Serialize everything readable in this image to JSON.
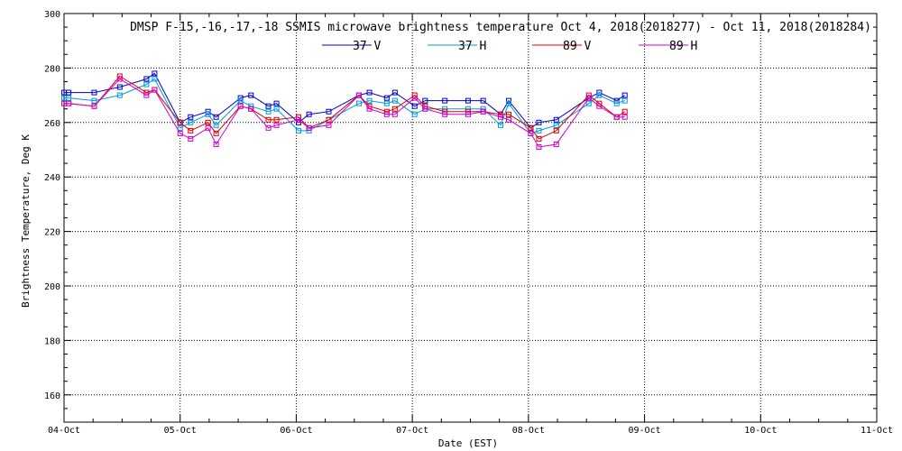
{
  "chart_data": {
    "type": "line",
    "title": "DMSP F-15,-16,-17,-18 SSMIS microwave brightness temperature Oct  4, 2018(2018277) - Oct 11, 2018(2018284)",
    "xlabel": "Date (EST)",
    "ylabel": "Brightness Temperature, Deg K",
    "xlim": [
      0,
      7
    ],
    "ylim": [
      150,
      300
    ],
    "x_ticks": [
      {
        "value": 0,
        "label": "04-Oct"
      },
      {
        "value": 1,
        "label": "05-Oct"
      },
      {
        "value": 2,
        "label": "06-Oct"
      },
      {
        "value": 3,
        "label": "07-Oct"
      },
      {
        "value": 4,
        "label": "08-Oct"
      },
      {
        "value": 5,
        "label": "09-Oct"
      },
      {
        "value": 6,
        "label": "10-Oct"
      },
      {
        "value": 7,
        "label": "11-Oct"
      }
    ],
    "y_ticks": [
      160,
      180,
      200,
      220,
      240,
      260,
      280,
      300
    ],
    "grid": true,
    "legend_position": "top",
    "series": [
      {
        "name": "37 V",
        "color": "#0000cc",
        "points": [
          [
            0.0,
            271
          ],
          [
            0.04,
            271
          ],
          [
            0.26,
            271
          ],
          [
            0.48,
            273
          ],
          [
            0.71,
            276
          ],
          [
            0.78,
            278
          ],
          [
            1.0,
            260
          ],
          [
            1.09,
            262
          ],
          [
            1.24,
            264
          ],
          [
            1.31,
            262
          ],
          [
            1.52,
            269
          ],
          [
            1.61,
            270
          ],
          [
            1.76,
            266
          ],
          [
            1.83,
            267
          ],
          [
            2.02,
            260
          ],
          [
            2.11,
            263
          ],
          [
            2.28,
            264
          ],
          [
            2.54,
            270
          ],
          [
            2.63,
            271
          ],
          [
            2.78,
            269
          ],
          [
            2.85,
            271
          ],
          [
            3.02,
            266
          ],
          [
            3.11,
            268
          ],
          [
            3.28,
            268
          ],
          [
            3.48,
            268
          ],
          [
            3.61,
            268
          ],
          [
            3.76,
            263
          ],
          [
            3.83,
            268
          ],
          [
            4.02,
            258
          ],
          [
            4.09,
            260
          ],
          [
            4.24,
            261
          ],
          [
            4.52,
            269
          ],
          [
            4.61,
            271
          ],
          [
            4.76,
            268
          ],
          [
            4.83,
            270
          ]
        ]
      },
      {
        "name": "37 H",
        "color": "#0099dd",
        "points": [
          [
            0.0,
            269
          ],
          [
            0.04,
            269
          ],
          [
            0.26,
            268
          ],
          [
            0.48,
            270
          ],
          [
            0.71,
            274
          ],
          [
            0.78,
            276
          ],
          [
            1.0,
            258
          ],
          [
            1.09,
            260
          ],
          [
            1.24,
            263
          ],
          [
            1.31,
            259
          ],
          [
            1.52,
            268
          ],
          [
            1.61,
            266
          ],
          [
            1.76,
            264
          ],
          [
            1.83,
            265
          ],
          [
            2.02,
            257
          ],
          [
            2.11,
            257
          ],
          [
            2.28,
            261
          ],
          [
            2.54,
            267
          ],
          [
            2.63,
            268
          ],
          [
            2.78,
            267
          ],
          [
            2.85,
            268
          ],
          [
            3.02,
            263
          ],
          [
            3.11,
            265
          ],
          [
            3.28,
            265
          ],
          [
            3.48,
            265
          ],
          [
            3.61,
            265
          ],
          [
            3.76,
            259
          ],
          [
            3.83,
            267
          ],
          [
            4.02,
            256
          ],
          [
            4.09,
            257
          ],
          [
            4.24,
            259
          ],
          [
            4.52,
            267
          ],
          [
            4.61,
            270
          ],
          [
            4.76,
            267
          ],
          [
            4.83,
            268
          ]
        ]
      },
      {
        "name": "89 V",
        "color": "#dd0000",
        "points": [
          [
            0.0,
            267
          ],
          [
            0.04,
            267
          ],
          [
            0.26,
            266
          ],
          [
            0.48,
            277
          ],
          [
            0.71,
            271
          ],
          [
            0.78,
            272
          ],
          [
            1.0,
            260
          ],
          [
            1.09,
            257
          ],
          [
            1.24,
            260
          ],
          [
            1.31,
            256
          ],
          [
            1.52,
            266
          ],
          [
            1.61,
            265
          ],
          [
            1.76,
            261
          ],
          [
            1.83,
            261
          ],
          [
            2.02,
            262
          ],
          [
            2.11,
            258
          ],
          [
            2.28,
            261
          ],
          [
            2.54,
            270
          ],
          [
            2.63,
            266
          ],
          [
            2.78,
            264
          ],
          [
            2.85,
            265
          ],
          [
            3.02,
            270
          ],
          [
            3.11,
            266
          ],
          [
            3.28,
            264
          ],
          [
            3.48,
            264
          ],
          [
            3.61,
            264
          ],
          [
            3.76,
            263
          ],
          [
            3.83,
            263
          ],
          [
            4.02,
            258
          ],
          [
            4.09,
            254
          ],
          [
            4.24,
            257
          ],
          [
            4.52,
            270
          ],
          [
            4.61,
            267
          ],
          [
            4.76,
            262
          ],
          [
            4.83,
            264
          ]
        ]
      },
      {
        "name": "89 H",
        "color": "#cc00cc",
        "points": [
          [
            0.0,
            267
          ],
          [
            0.04,
            267
          ],
          [
            0.26,
            266
          ],
          [
            0.48,
            276
          ],
          [
            0.71,
            270
          ],
          [
            0.78,
            272
          ],
          [
            1.0,
            256
          ],
          [
            1.09,
            254
          ],
          [
            1.24,
            258
          ],
          [
            1.31,
            252
          ],
          [
            1.52,
            266
          ],
          [
            1.61,
            265
          ],
          [
            1.76,
            258
          ],
          [
            1.83,
            259
          ],
          [
            2.02,
            261
          ],
          [
            2.11,
            258
          ],
          [
            2.28,
            259
          ],
          [
            2.54,
            270
          ],
          [
            2.63,
            265
          ],
          [
            2.78,
            263
          ],
          [
            2.85,
            263
          ],
          [
            3.02,
            269
          ],
          [
            3.11,
            265
          ],
          [
            3.28,
            263
          ],
          [
            3.48,
            263
          ],
          [
            3.61,
            264
          ],
          [
            3.76,
            262
          ],
          [
            3.83,
            261
          ],
          [
            4.02,
            256
          ],
          [
            4.09,
            251
          ],
          [
            4.24,
            252
          ],
          [
            4.52,
            269
          ],
          [
            4.61,
            266
          ],
          [
            4.76,
            262
          ],
          [
            4.83,
            262
          ]
        ]
      }
    ]
  }
}
